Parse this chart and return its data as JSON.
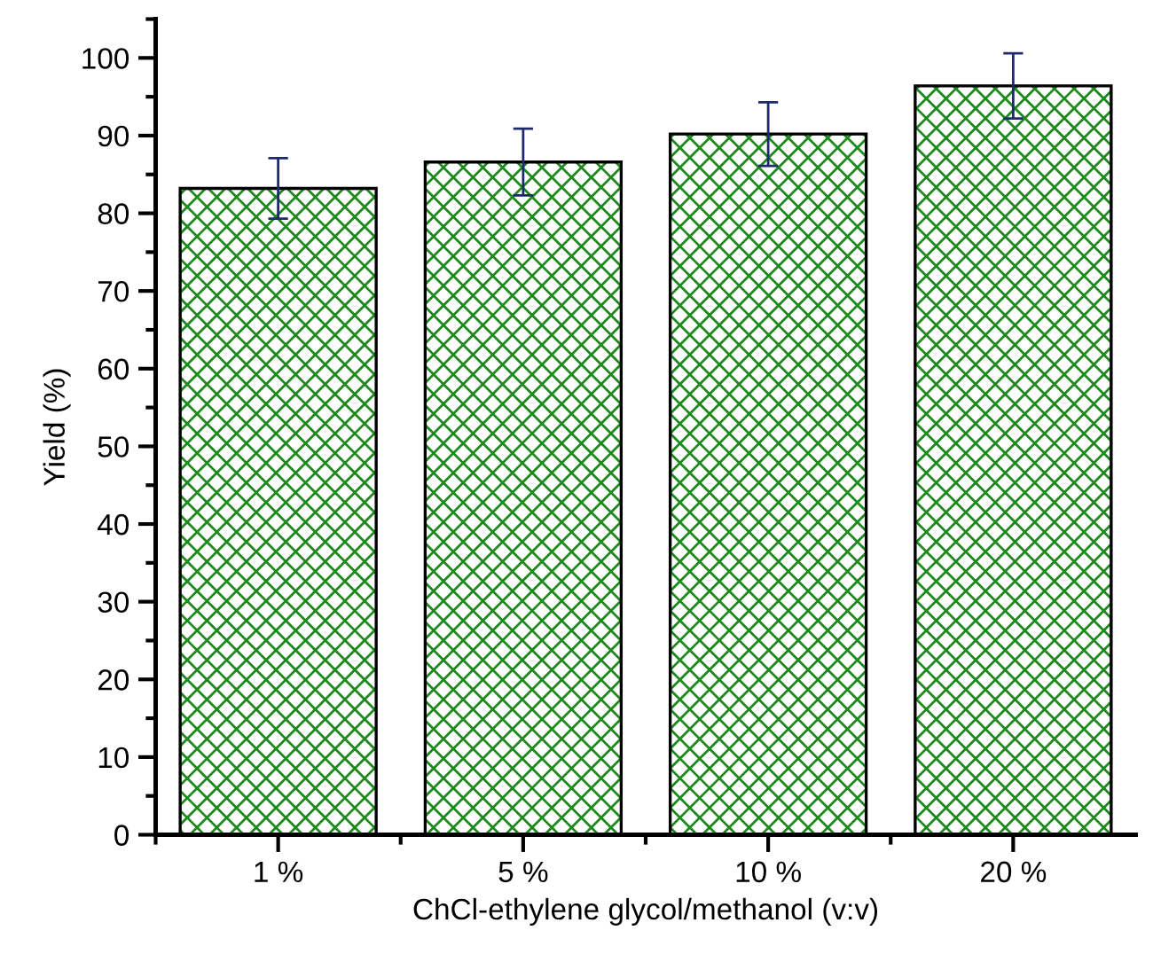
{
  "chart_data": {
    "type": "bar",
    "xlabel": "ChCl-ethylene glycol/methanol (v:v)",
    "ylabel": "Yield (%)",
    "categories": [
      "1 %",
      "5 %",
      "10 %",
      "20 %"
    ],
    "series": [
      {
        "color": "#1e8a1e",
        "values": [
          83.2,
          86.6,
          90.2,
          96.4
        ],
        "errors": [
          3.9,
          4.3,
          4.1,
          4.2
        ]
      }
    ],
    "ylim": [
      0,
      105
    ],
    "yticks": [
      0,
      10,
      20,
      30,
      40,
      50,
      60,
      70,
      80,
      90,
      100
    ],
    "grid": false,
    "legend": false
  }
}
